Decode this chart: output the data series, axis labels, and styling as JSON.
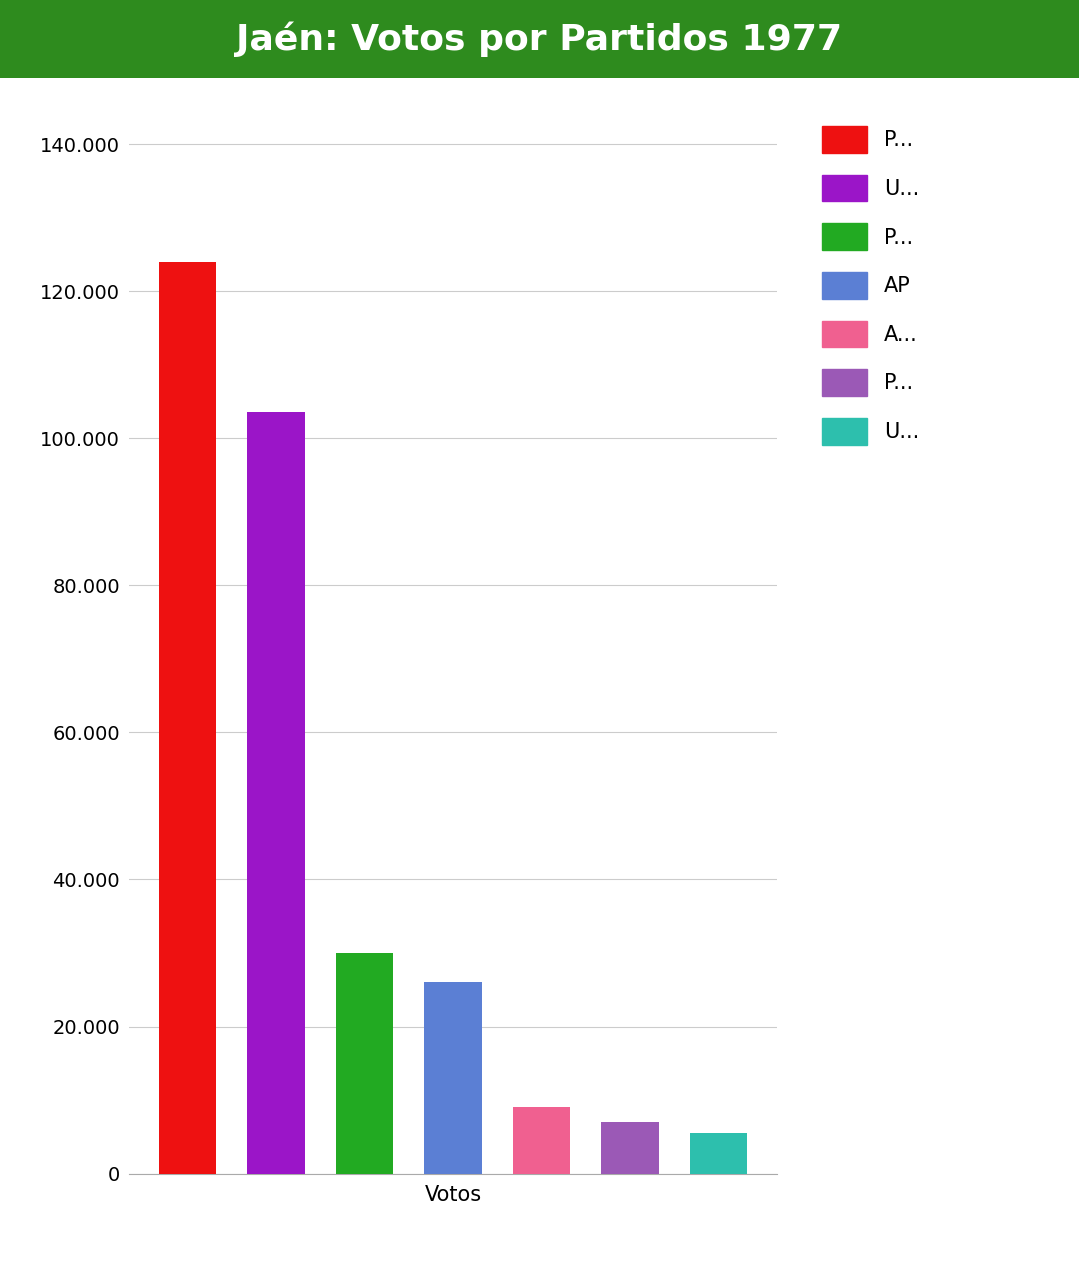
{
  "title": "Jaén: Votos por Partidos 1977",
  "title_bg_color": "#2e8b1e",
  "title_text_color": "#ffffff",
  "xlabel": "Votos",
  "values": [
    124000,
    103500,
    30000,
    26000,
    9000,
    7000,
    5500
  ],
  "bar_colors": [
    "#ee1111",
    "#9b15c8",
    "#22aa22",
    "#5b7fd4",
    "#f06090",
    "#9b59b6",
    "#2dbfad"
  ],
  "legend_labels": [
    "P...",
    "U...",
    "P...",
    "AP",
    "A...",
    "P...",
    "U..."
  ],
  "ylim": [
    0,
    145000
  ],
  "yticks": [
    0,
    20000,
    40000,
    60000,
    80000,
    100000,
    120000,
    140000
  ],
  "ytick_labels": [
    "0",
    "20.000",
    "40.000",
    "60.000",
    "80.000",
    "100.000",
    "120.000",
    "140.000"
  ],
  "background_color": "#ffffff",
  "grid_color": "#cccccc",
  "title_fontsize": 26,
  "axis_fontsize": 15,
  "tick_fontsize": 14,
  "legend_fontsize": 15
}
